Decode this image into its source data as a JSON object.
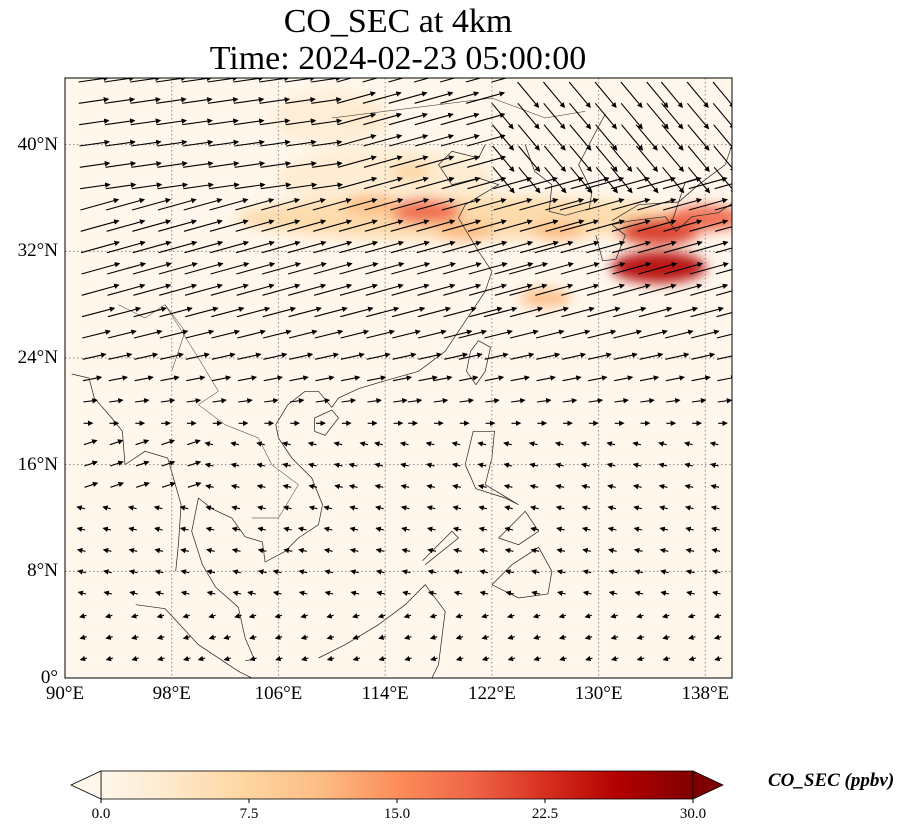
{
  "title": {
    "line1": "CO_SEC at 4km",
    "line2": "Time: 2024-02-23 05:00:00"
  },
  "map": {
    "projection": "PlateCarree",
    "lon_range": [
      90,
      140
    ],
    "lat_range": [
      0,
      45
    ],
    "gridlines": "dotted",
    "lat_ticks": [
      {
        "value": 40,
        "label": "40°N"
      },
      {
        "value": 32,
        "label": "32°N"
      },
      {
        "value": 24,
        "label": "24°N"
      },
      {
        "value": 16,
        "label": "16°N"
      },
      {
        "value": 8,
        "label": "8°N"
      },
      {
        "value": 0,
        "label": "0°"
      }
    ],
    "lon_ticks": [
      {
        "value": 90,
        "label": "90°E"
      },
      {
        "value": 98,
        "label": "98°E"
      },
      {
        "value": 106,
        "label": "106°E"
      },
      {
        "value": 114,
        "label": "114°E"
      },
      {
        "value": 122,
        "label": "122°E"
      },
      {
        "value": 130,
        "label": "130°E"
      },
      {
        "value": 138,
        "label": "138°E"
      }
    ],
    "field_hotspots": [
      {
        "lon": 117,
        "lat": 35,
        "value": 18
      },
      {
        "lon": 113,
        "lat": 35.5,
        "value": 12
      },
      {
        "lon": 120,
        "lat": 33.5,
        "value": 12
      },
      {
        "lon": 127,
        "lat": 33.5,
        "value": 10
      },
      {
        "lon": 134.5,
        "lat": 33.5,
        "value": 22
      },
      {
        "lon": 138,
        "lat": 34.5,
        "value": 20
      },
      {
        "lon": 134.5,
        "lat": 30.8,
        "value": 28
      },
      {
        "lon": 126,
        "lat": 28.5,
        "value": 10
      },
      {
        "lon": 116,
        "lat": 38,
        "value": 6
      },
      {
        "lon": 112,
        "lat": 42,
        "value": 4
      }
    ],
    "wind_vectors": "quiver"
  },
  "colorbar": {
    "label": "CO_SEC (ppbv)",
    "colormap": "OrRd",
    "min": 0.0,
    "max": 30.0,
    "extend": "both",
    "ticks": [
      "0.0",
      "7.5",
      "15.0",
      "22.5",
      "30.0"
    ],
    "colors": [
      "#fff7ec",
      "#fee8c8",
      "#fdd49e",
      "#fdbb84",
      "#fc8d59",
      "#ef6548",
      "#d7301f",
      "#b30000",
      "#7f0000"
    ]
  }
}
